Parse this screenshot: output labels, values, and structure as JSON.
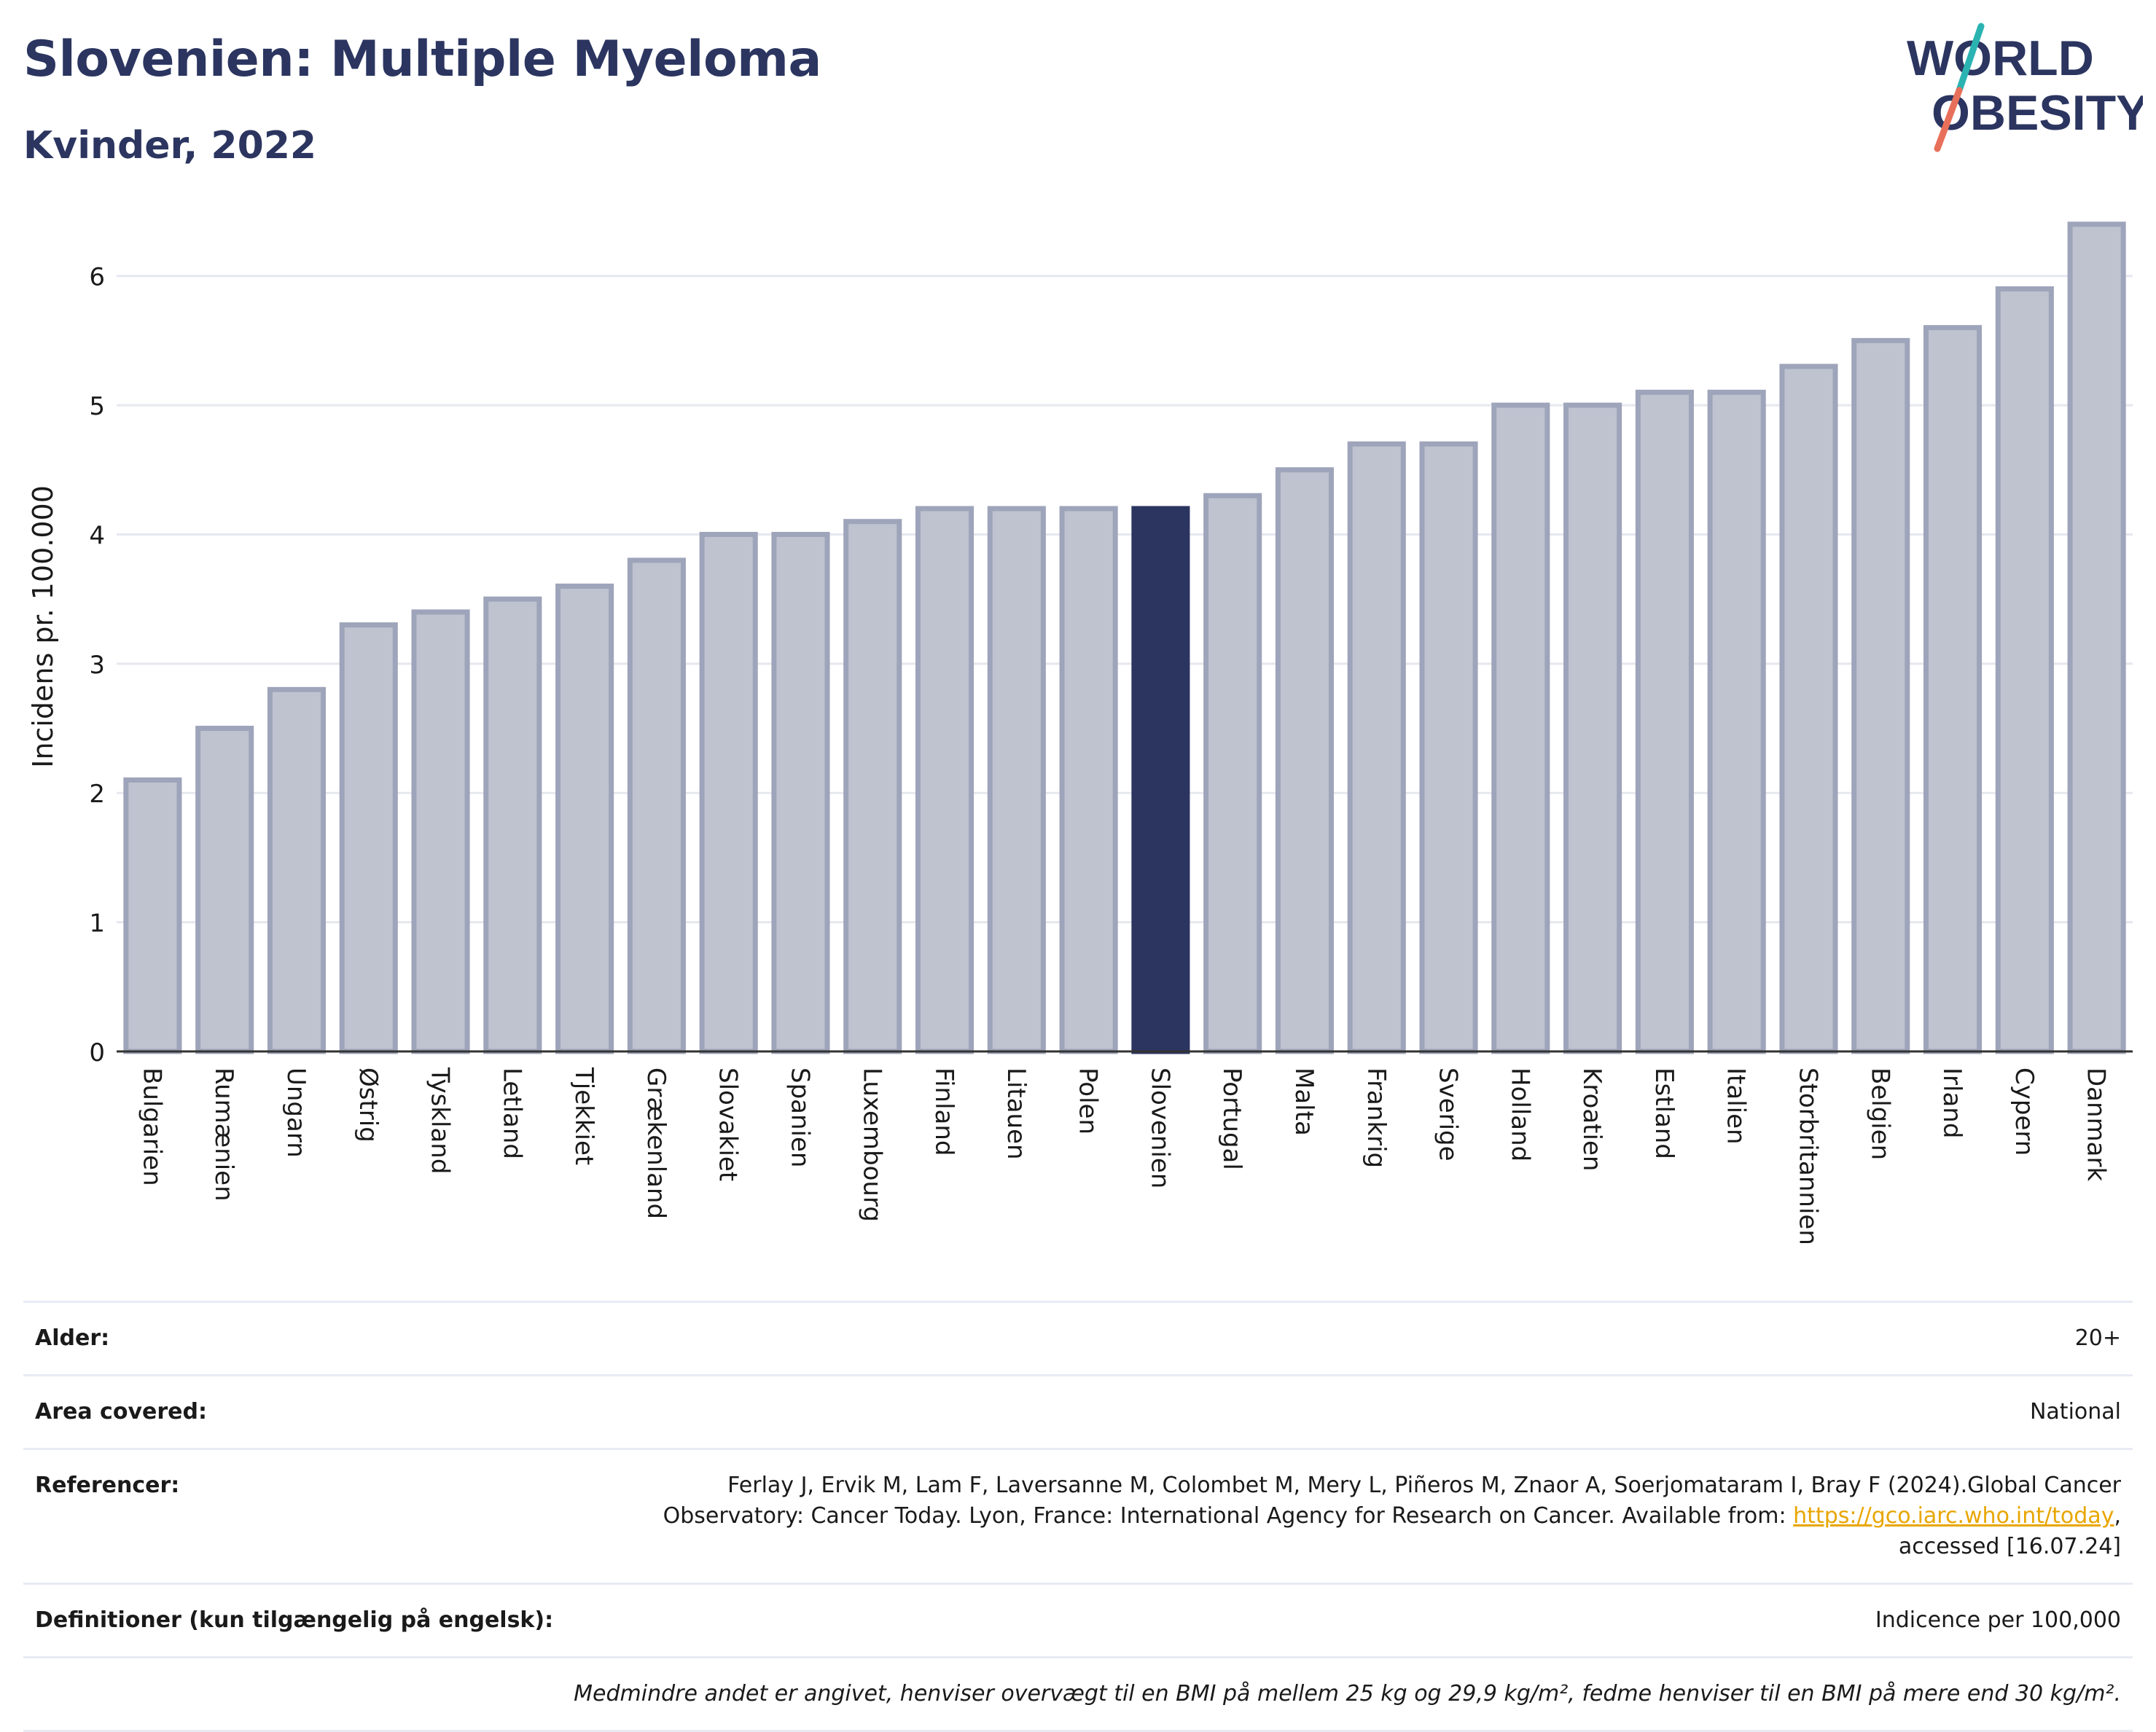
{
  "header": {
    "title": "Slovenien: Multiple Myeloma",
    "subtitle": "Kvinder, 2022"
  },
  "logo": {
    "line1": "WORLD",
    "line2": "OBESITY",
    "colors": {
      "text": "#2b3560",
      "slash_teal": "#2ab3b1",
      "slash_red": "#e8705a"
    }
  },
  "chart_data": {
    "type": "bar",
    "ylabel": "Incidens pr. 100.000",
    "xlabel": "",
    "ylim": [
      0,
      6.5
    ],
    "yticks": [
      0,
      1,
      2,
      3,
      4,
      5,
      6
    ],
    "grid": true,
    "categories": [
      "Bulgarien",
      "Rumænien",
      "Ungarn",
      "Østrig",
      "Tyskland",
      "Letland",
      "Tjekkiet",
      "Grækenland",
      "Slovakiet",
      "Spanien",
      "Luxembourg",
      "Finland",
      "Litauen",
      "Polen",
      "Slovenien",
      "Portugal",
      "Malta",
      "Frankrig",
      "Sverige",
      "Holland",
      "Kroatien",
      "Estland",
      "Italien",
      "Storbritannien",
      "Belgien",
      "Irland",
      "Cypern",
      "Danmark"
    ],
    "values": [
      2.1,
      2.5,
      2.8,
      3.3,
      3.4,
      3.5,
      3.6,
      3.8,
      4.0,
      4.0,
      4.1,
      4.2,
      4.2,
      4.2,
      4.2,
      4.3,
      4.5,
      4.7,
      4.7,
      5.0,
      5.0,
      5.1,
      5.1,
      5.3,
      5.5,
      5.6,
      5.9,
      6.4
    ],
    "highlight": "Slovenien",
    "colors": {
      "bar": "#bfc3d0",
      "bar_border": "#9ea4ba",
      "highlight": "#2b3560",
      "grid": "#e6e8ef",
      "axis": "#333333"
    }
  },
  "info": {
    "rows": [
      {
        "label": "Alder:",
        "value": "20+"
      },
      {
        "label": "Area covered:",
        "value": "National"
      },
      {
        "label": "Referencer:",
        "value_pre": "Ferlay J, Ervik M, Lam F, Laversanne M, Colombet M, Mery L, Piñeros M, Znaor A, Soerjomataram I, Bray F (2024).Global Cancer Observatory: Cancer Today. Lyon, France: International Agency for Research on Cancer. Available from: ",
        "link": "https://gco.iarc.who.int/today",
        "value_post": ", accessed [16.07.24]"
      },
      {
        "label": "Definitioner (kun tilgængelig på engelsk):",
        "value": "Indicence per 100,000"
      }
    ],
    "note": "Medmindre andet er angivet, henviser overvægt til en BMI på mellem 25 kg og 29,9 kg/m², fedme henviser til en BMI på mere end 30 kg/m²."
  }
}
